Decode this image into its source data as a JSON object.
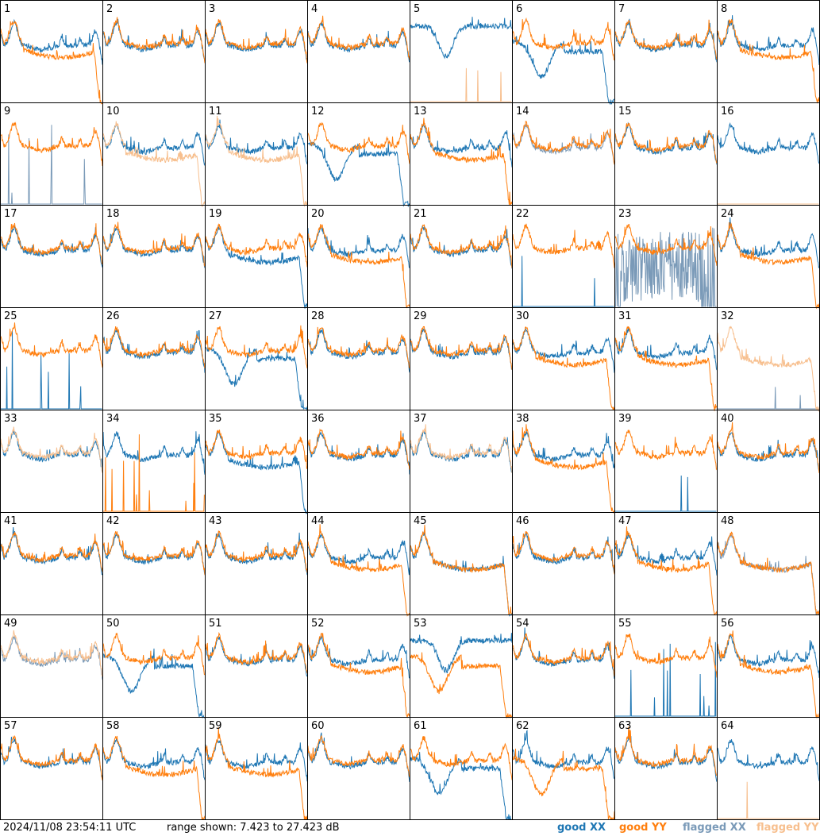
{
  "footer": {
    "timestamp": "2024/11/08 23:54:11 UTC",
    "range_text": "range shown: 7.423 to 27.423 dB",
    "legend": [
      {
        "label": "good XX",
        "color": "#1f77b4"
      },
      {
        "label": "good YY",
        "color": "#ff7f0e"
      },
      {
        "label": "flagged XX",
        "color": "#7a9ab8"
      },
      {
        "label": "flagged YY",
        "color": "#f7bf8e"
      }
    ]
  },
  "chart_data": {
    "type": "line",
    "layout": "8x8 small-multiples of antenna spectra",
    "y_range_db": [
      7.423,
      27.423
    ],
    "colors": {
      "good_xx": "#1f77b4",
      "good_yy": "#ff7f0e",
      "flagged_xx": "#7a9ab8",
      "flagged_yy": "#f7bf8e"
    },
    "panels": [
      {
        "id": "1",
        "xx": "good",
        "yy": "good",
        "xx_shape": "normal",
        "yy_shape": "dip-broad"
      },
      {
        "id": "2",
        "xx": "good",
        "yy": "good",
        "xx_shape": "normal",
        "yy_shape": "normal"
      },
      {
        "id": "3",
        "xx": "good",
        "yy": "good",
        "xx_shape": "normal",
        "yy_shape": "normal"
      },
      {
        "id": "4",
        "xx": "good",
        "yy": "good",
        "xx_shape": "normal",
        "yy_shape": "normal"
      },
      {
        "id": "5",
        "xx": "good",
        "yy": "flagged",
        "xx_shape": "dip-high",
        "yy_shape": "zero-spike"
      },
      {
        "id": "6",
        "xx": "good",
        "yy": "good",
        "xx_shape": "dip-deep",
        "yy_shape": "normal"
      },
      {
        "id": "7",
        "xx": "good",
        "yy": "good",
        "xx_shape": "normal",
        "yy_shape": "normal"
      },
      {
        "id": "8",
        "xx": "good",
        "yy": "good",
        "xx_shape": "normal",
        "yy_shape": "dip-broad"
      },
      {
        "id": "9",
        "xx": "flagged",
        "yy": "good",
        "xx_shape": "zero-spikes",
        "yy_shape": "normal"
      },
      {
        "id": "10",
        "xx": "good",
        "yy": "flagged",
        "xx_shape": "normal",
        "yy_shape": "dip-broad"
      },
      {
        "id": "11",
        "xx": "good",
        "yy": "flagged",
        "xx_shape": "normal",
        "yy_shape": "dip-broad"
      },
      {
        "id": "12",
        "xx": "good",
        "yy": "good",
        "xx_shape": "dip-deep",
        "yy_shape": "normal"
      },
      {
        "id": "13",
        "xx": "good",
        "yy": "good",
        "xx_shape": "normal",
        "yy_shape": "dip-broad"
      },
      {
        "id": "14",
        "xx": "flagged",
        "yy": "good",
        "xx_shape": "normal",
        "yy_shape": "normal"
      },
      {
        "id": "15",
        "xx": "good",
        "yy": "good",
        "xx_shape": "normal",
        "yy_shape": "normal"
      },
      {
        "id": "16",
        "xx": "good",
        "yy": "flagged",
        "xx_shape": "normal",
        "yy_shape": "zero-spike"
      },
      {
        "id": "17",
        "xx": "good",
        "yy": "good",
        "xx_shape": "normal",
        "yy_shape": "normal"
      },
      {
        "id": "18",
        "xx": "good",
        "yy": "good",
        "xx_shape": "normal",
        "yy_shape": "normal"
      },
      {
        "id": "19",
        "xx": "good",
        "yy": "good",
        "xx_shape": "dip-broad",
        "yy_shape": "normal"
      },
      {
        "id": "20",
        "xx": "good",
        "yy": "good",
        "xx_shape": "normal",
        "yy_shape": "dip-broad"
      },
      {
        "id": "21",
        "xx": "good",
        "yy": "good",
        "xx_shape": "normal",
        "yy_shape": "normal"
      },
      {
        "id": "22",
        "xx": "good",
        "yy": "good",
        "xx_shape": "zero-spike",
        "yy_shape": "normal"
      },
      {
        "id": "23",
        "xx": "flagged",
        "yy": "good",
        "xx_shape": "noisy-zero",
        "yy_shape": "normal"
      },
      {
        "id": "24",
        "xx": "good",
        "yy": "good",
        "xx_shape": "normal",
        "yy_shape": "dip-broad"
      },
      {
        "id": "25",
        "xx": "good",
        "yy": "good",
        "xx_shape": "zero-spike",
        "yy_shape": "normal"
      },
      {
        "id": "26",
        "xx": "good",
        "yy": "good",
        "xx_shape": "normal",
        "yy_shape": "normal"
      },
      {
        "id": "27",
        "xx": "good",
        "yy": "good",
        "xx_shape": "dip-deep",
        "yy_shape": "normal"
      },
      {
        "id": "28",
        "xx": "good",
        "yy": "good",
        "xx_shape": "normal",
        "yy_shape": "normal"
      },
      {
        "id": "29",
        "xx": "good",
        "yy": "good",
        "xx_shape": "normal",
        "yy_shape": "normal"
      },
      {
        "id": "30",
        "xx": "good",
        "yy": "good",
        "xx_shape": "normal",
        "yy_shape": "dip-broad"
      },
      {
        "id": "31",
        "xx": "good",
        "yy": "good",
        "xx_shape": "normal",
        "yy_shape": "dip-broad"
      },
      {
        "id": "32",
        "xx": "flagged",
        "yy": "flagged",
        "xx_shape": "zero-spike",
        "yy_shape": "dip-broad"
      },
      {
        "id": "33",
        "xx": "good",
        "yy": "flagged",
        "xx_shape": "normal",
        "yy_shape": "normal"
      },
      {
        "id": "34",
        "xx": "good",
        "yy": "good",
        "xx_shape": "normal",
        "yy_shape": "zero-spikes"
      },
      {
        "id": "35",
        "xx": "good",
        "yy": "good",
        "xx_shape": "dip-broad",
        "yy_shape": "normal"
      },
      {
        "id": "36",
        "xx": "good",
        "yy": "good",
        "xx_shape": "normal",
        "yy_shape": "normal"
      },
      {
        "id": "37",
        "xx": "good",
        "yy": "flagged",
        "xx_shape": "normal",
        "yy_shape": "normal"
      },
      {
        "id": "38",
        "xx": "good",
        "yy": "good",
        "xx_shape": "normal",
        "yy_shape": "dip-broad"
      },
      {
        "id": "39",
        "xx": "good",
        "yy": "good",
        "xx_shape": "zero-spike",
        "yy_shape": "normal"
      },
      {
        "id": "40",
        "xx": "good",
        "yy": "good",
        "xx_shape": "normal",
        "yy_shape": "normal"
      },
      {
        "id": "41",
        "xx": "good",
        "yy": "good",
        "xx_shape": "normal",
        "yy_shape": "normal"
      },
      {
        "id": "42",
        "xx": "good",
        "yy": "good",
        "xx_shape": "normal",
        "yy_shape": "normal"
      },
      {
        "id": "43",
        "xx": "good",
        "yy": "good",
        "xx_shape": "normal",
        "yy_shape": "normal"
      },
      {
        "id": "44",
        "xx": "good",
        "yy": "good",
        "xx_shape": "normal",
        "yy_shape": "dip-broad"
      },
      {
        "id": "45",
        "xx": "good",
        "yy": "good",
        "xx_shape": "dip-broad",
        "yy_shape": "dip-broad"
      },
      {
        "id": "46",
        "xx": "good",
        "yy": "good",
        "xx_shape": "normal",
        "yy_shape": "normal"
      },
      {
        "id": "47",
        "xx": "good",
        "yy": "good",
        "xx_shape": "normal",
        "yy_shape": "dip-broad"
      },
      {
        "id": "48",
        "xx": "flagged",
        "yy": "good",
        "xx_shape": "dip-broad",
        "yy_shape": "dip-broad"
      },
      {
        "id": "49",
        "xx": "flagged",
        "yy": "flagged",
        "xx_shape": "normal",
        "yy_shape": "normal"
      },
      {
        "id": "50",
        "xx": "good",
        "yy": "good",
        "xx_shape": "dip-deep",
        "yy_shape": "normal"
      },
      {
        "id": "51",
        "xx": "good",
        "yy": "good",
        "xx_shape": "normal",
        "yy_shape": "normal"
      },
      {
        "id": "52",
        "xx": "good",
        "yy": "good",
        "xx_shape": "normal",
        "yy_shape": "dip-broad"
      },
      {
        "id": "53",
        "xx": "good",
        "yy": "good",
        "xx_shape": "dip-high",
        "yy_shape": "dip-deep"
      },
      {
        "id": "54",
        "xx": "good",
        "yy": "good",
        "xx_shape": "normal",
        "yy_shape": "normal"
      },
      {
        "id": "55",
        "xx": "good",
        "yy": "good",
        "xx_shape": "zero-spikes",
        "yy_shape": "normal"
      },
      {
        "id": "56",
        "xx": "good",
        "yy": "good",
        "xx_shape": "normal",
        "yy_shape": "dip-broad"
      },
      {
        "id": "57",
        "xx": "good",
        "yy": "good",
        "xx_shape": "normal",
        "yy_shape": "normal"
      },
      {
        "id": "58",
        "xx": "good",
        "yy": "good",
        "xx_shape": "normal",
        "yy_shape": "dip-broad"
      },
      {
        "id": "59",
        "xx": "good",
        "yy": "good",
        "xx_shape": "normal",
        "yy_shape": "dip-broad"
      },
      {
        "id": "60",
        "xx": "good",
        "yy": "good",
        "xx_shape": "normal",
        "yy_shape": "normal"
      },
      {
        "id": "61",
        "xx": "good",
        "yy": "good",
        "xx_shape": "dip-deep",
        "yy_shape": "normal"
      },
      {
        "id": "62",
        "xx": "good",
        "yy": "good",
        "xx_shape": "normal",
        "yy_shape": "dip-deep"
      },
      {
        "id": "63",
        "xx": "good",
        "yy": "good",
        "xx_shape": "normal",
        "yy_shape": "normal"
      },
      {
        "id": "64",
        "xx": "good",
        "yy": "flagged",
        "xx_shape": "normal",
        "yy_shape": "zero-spike"
      }
    ]
  }
}
